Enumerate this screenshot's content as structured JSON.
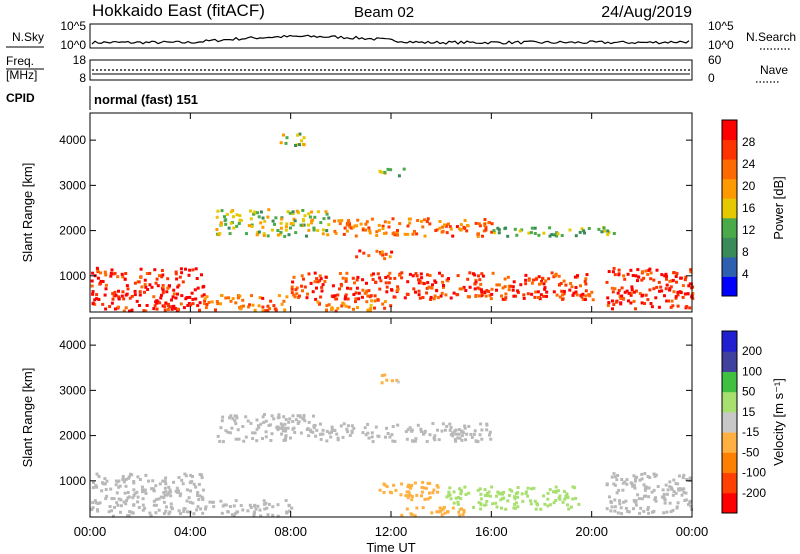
{
  "header": {
    "radar": "Hokkaido East (fitACF)",
    "beam": "Beam 02",
    "date": "24/Aug/2019"
  },
  "side_labels": {
    "nsky": "N.Sky",
    "nsearch": "N.Search",
    "freq_top": "Freq.",
    "freq_unit": "[MHz]",
    "nave": "Nave",
    "cpid": "CPID"
  },
  "noise_panel": {
    "left_ticks": [
      "10^5",
      "10^0"
    ],
    "right_ticks": [
      "10^5",
      "10^0"
    ]
  },
  "freq_panel": {
    "left_ticks": [
      "18",
      "8"
    ],
    "right_ticks": [
      "60",
      "0"
    ]
  },
  "cpid_panel": {
    "text": "normal (fast) 151"
  },
  "colors": {
    "power_scale": [
      "#0000ff",
      "#2f5fb0",
      "#3a8a5a",
      "#4aaa4a",
      "#e6c800",
      "#ff9900",
      "#ff6a00",
      "#ff3300",
      "#ff0000"
    ],
    "velocity_scale": [
      "#ff0000",
      "#ff4000",
      "#ff8000",
      "#ffb040",
      "#c8c8c8",
      "#a8e070",
      "#40c040",
      "#40409f",
      "#2020d0"
    ],
    "ground_scatter": "#b8b8b8"
  },
  "chart_data": [
    {
      "type": "heatmap",
      "name": "power",
      "ylabel": "Slant Range [km]",
      "y_ticks": [
        "1000",
        "2000",
        "3000",
        "4000"
      ],
      "ylim": [
        200,
        4600
      ],
      "x_ticks": [
        "00:00",
        "04:00",
        "08:00",
        "12:00",
        "16:00",
        "20:00",
        "00:00"
      ],
      "xlim_hours": [
        0,
        24
      ],
      "colorbar_label": "Power [dB]",
      "colorbar_ticks": [
        "4",
        "8",
        "12",
        "16",
        "20",
        "24",
        "28"
      ],
      "colorbar_range": [
        0,
        30
      ],
      "regions": [
        {
          "t0": 0.0,
          "t1": 4.5,
          "r0": 250,
          "r1": 1200,
          "value": 27
        },
        {
          "t0": 4.5,
          "t1": 8.0,
          "r0": 250,
          "r1": 600,
          "value": 22
        },
        {
          "t0": 8.0,
          "t1": 20.0,
          "r0": 500,
          "r1": 1100,
          "value": 25
        },
        {
          "t0": 9.0,
          "t1": 12.0,
          "r0": 250,
          "r1": 500,
          "value": 20
        },
        {
          "t0": 20.5,
          "t1": 24.0,
          "r0": 300,
          "r1": 1200,
          "value": 27
        },
        {
          "t0": 5.0,
          "t1": 9.5,
          "r0": 1900,
          "r1": 2500,
          "value": 14
        },
        {
          "t0": 9.5,
          "t1": 16.0,
          "r0": 1900,
          "r1": 2300,
          "value": 22
        },
        {
          "t0": 16.0,
          "t1": 21.0,
          "r0": 1900,
          "r1": 2100,
          "value": 12
        },
        {
          "t0": 10.5,
          "t1": 12.0,
          "r0": 1400,
          "r1": 1600,
          "value": 24
        },
        {
          "t0": 11.5,
          "t1": 12.5,
          "r0": 3200,
          "r1": 3400,
          "value": 14
        },
        {
          "t0": 7.5,
          "t1": 8.5,
          "r0": 3900,
          "r1": 4200,
          "value": 13
        }
      ]
    },
    {
      "type": "heatmap",
      "name": "velocity",
      "ylabel": "Slant Range [km]",
      "y_ticks": [
        "1000",
        "2000",
        "3000",
        "4000"
      ],
      "ylim": [
        200,
        4600
      ],
      "x_ticks": [
        "00:00",
        "04:00",
        "08:00",
        "12:00",
        "16:00",
        "20:00",
        "00:00"
      ],
      "xlim_hours": [
        0,
        24
      ],
      "colorbar_label": "Velocity [m s⁻¹]",
      "colorbar_ticks": [
        "-200",
        "-100",
        "-50",
        "-15",
        "15",
        "50",
        "100",
        "200"
      ],
      "colorbar_range": [
        -250,
        250
      ],
      "regions": [
        {
          "t0": 0.0,
          "t1": 4.5,
          "r0": 250,
          "r1": 1200,
          "value": 0
        },
        {
          "t0": 4.5,
          "t1": 8.0,
          "r0": 250,
          "r1": 600,
          "value": 0
        },
        {
          "t0": 5.0,
          "t1": 9.5,
          "r0": 1900,
          "r1": 2500,
          "value": 0
        },
        {
          "t0": 9.5,
          "t1": 16.0,
          "r0": 1900,
          "r1": 2300,
          "value": 0
        },
        {
          "t0": 11.5,
          "t1": 14.0,
          "r0": 600,
          "r1": 1000,
          "value": -60
        },
        {
          "t0": 14.0,
          "t1": 19.5,
          "r0": 400,
          "r1": 900,
          "value": 40
        },
        {
          "t0": 12.0,
          "t1": 15.0,
          "r0": 250,
          "r1": 450,
          "value": -40
        },
        {
          "t0": 20.5,
          "t1": 24.0,
          "r0": 300,
          "r1": 1200,
          "value": 0
        },
        {
          "t0": 11.5,
          "t1": 12.5,
          "r0": 3200,
          "r1": 3400,
          "value": -30
        }
      ]
    }
  ],
  "xaxis": {
    "label": "Time UT"
  }
}
